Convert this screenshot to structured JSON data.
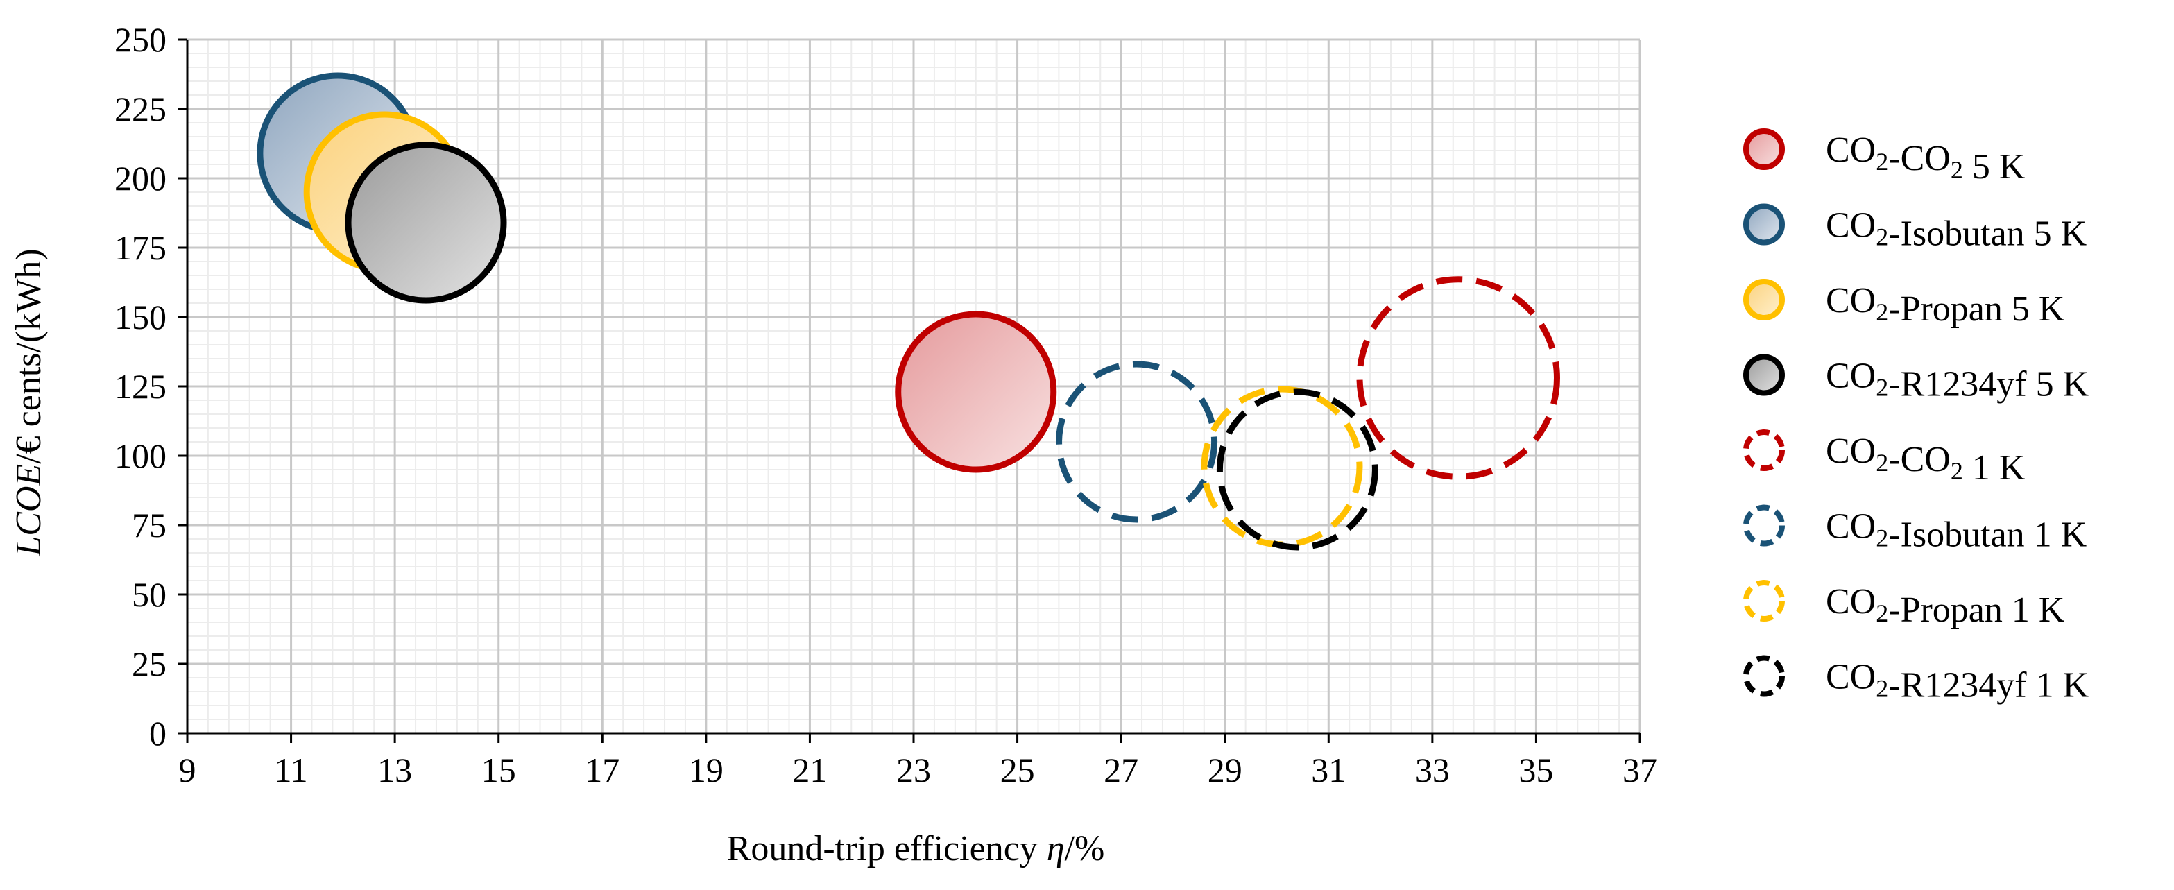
{
  "chart_data": {
    "type": "bubble",
    "x_axis": {
      "label_prefix": "Round-trip efficiency ",
      "label_symbol": "η",
      "label_suffix": "/%",
      "min": 9,
      "max": 37,
      "ticks": [
        9,
        11,
        13,
        15,
        17,
        19,
        21,
        23,
        25,
        27,
        29,
        31,
        33,
        35,
        37
      ]
    },
    "y_axis": {
      "label_prefix": "",
      "label_symbol": "LCOE",
      "label_suffix": "/€ cents/(kWh)",
      "min": 0,
      "max": 250,
      "ticks": [
        0,
        25,
        50,
        75,
        100,
        125,
        150,
        175,
        200,
        225,
        250
      ]
    },
    "grid": true,
    "legend_position": "right",
    "series": [
      {
        "base": "CO",
        "sub1": "2",
        "mid": "-CO",
        "sub2": "2",
        "tail": " 5 K",
        "x": 24.2,
        "y": 123,
        "size": 1.0,
        "style": "solid",
        "stroke": "#c00000",
        "fill_from": "#e59a9c",
        "fill_to": "#f8e1e1"
      },
      {
        "base": "CO",
        "sub1": "2",
        "mid": "-Isobutan 5 K",
        "sub2": "",
        "tail": "",
        "x": 11.9,
        "y": 209,
        "size": 1.0,
        "style": "solid",
        "stroke": "#1a5276",
        "fill_from": "#8fa6bf",
        "fill_to": "#e2e8ef"
      },
      {
        "base": "CO",
        "sub1": "2",
        "mid": "-Propan 5 K",
        "sub2": "",
        "tail": "",
        "x": 12.8,
        "y": 195,
        "size": 1.0,
        "style": "solid",
        "stroke": "#ffc000",
        "fill_from": "#fbd27e",
        "fill_to": "#fff1cf"
      },
      {
        "base": "CO",
        "sub1": "2",
        "mid": "-R1234yf 5 K",
        "sub2": "",
        "tail": "",
        "x": 13.6,
        "y": 184,
        "size": 1.0,
        "style": "solid",
        "stroke": "#000000",
        "fill_from": "#9b9b9b",
        "fill_to": "#e3e3e3"
      },
      {
        "base": "CO",
        "sub1": "2",
        "mid": "-CO",
        "sub2": "2",
        "tail": " 1 K",
        "x": 33.5,
        "y": 128,
        "size": 1.27,
        "style": "dashed",
        "stroke": "#c00000",
        "fill_from": "",
        "fill_to": ""
      },
      {
        "base": "CO",
        "sub1": "2",
        "mid": "-Isobutan 1 K",
        "sub2": "",
        "tail": "",
        "x": 27.3,
        "y": 105,
        "size": 1.0,
        "style": "dashed",
        "stroke": "#1a5276",
        "fill_from": "",
        "fill_to": ""
      },
      {
        "base": "CO",
        "sub1": "2",
        "mid": "-Propan 1 K",
        "sub2": "",
        "tail": "",
        "x": 30.1,
        "y": 96,
        "size": 1.0,
        "style": "dashed",
        "stroke": "#ffc000",
        "fill_from": "",
        "fill_to": ""
      },
      {
        "base": "CO",
        "sub1": "2",
        "mid": "-R1234yf 1 K",
        "sub2": "",
        "tail": "",
        "x": 30.4,
        "y": 95,
        "size": 1.0,
        "style": "dashed",
        "stroke": "#000000",
        "fill_from": "",
        "fill_to": ""
      }
    ]
  }
}
